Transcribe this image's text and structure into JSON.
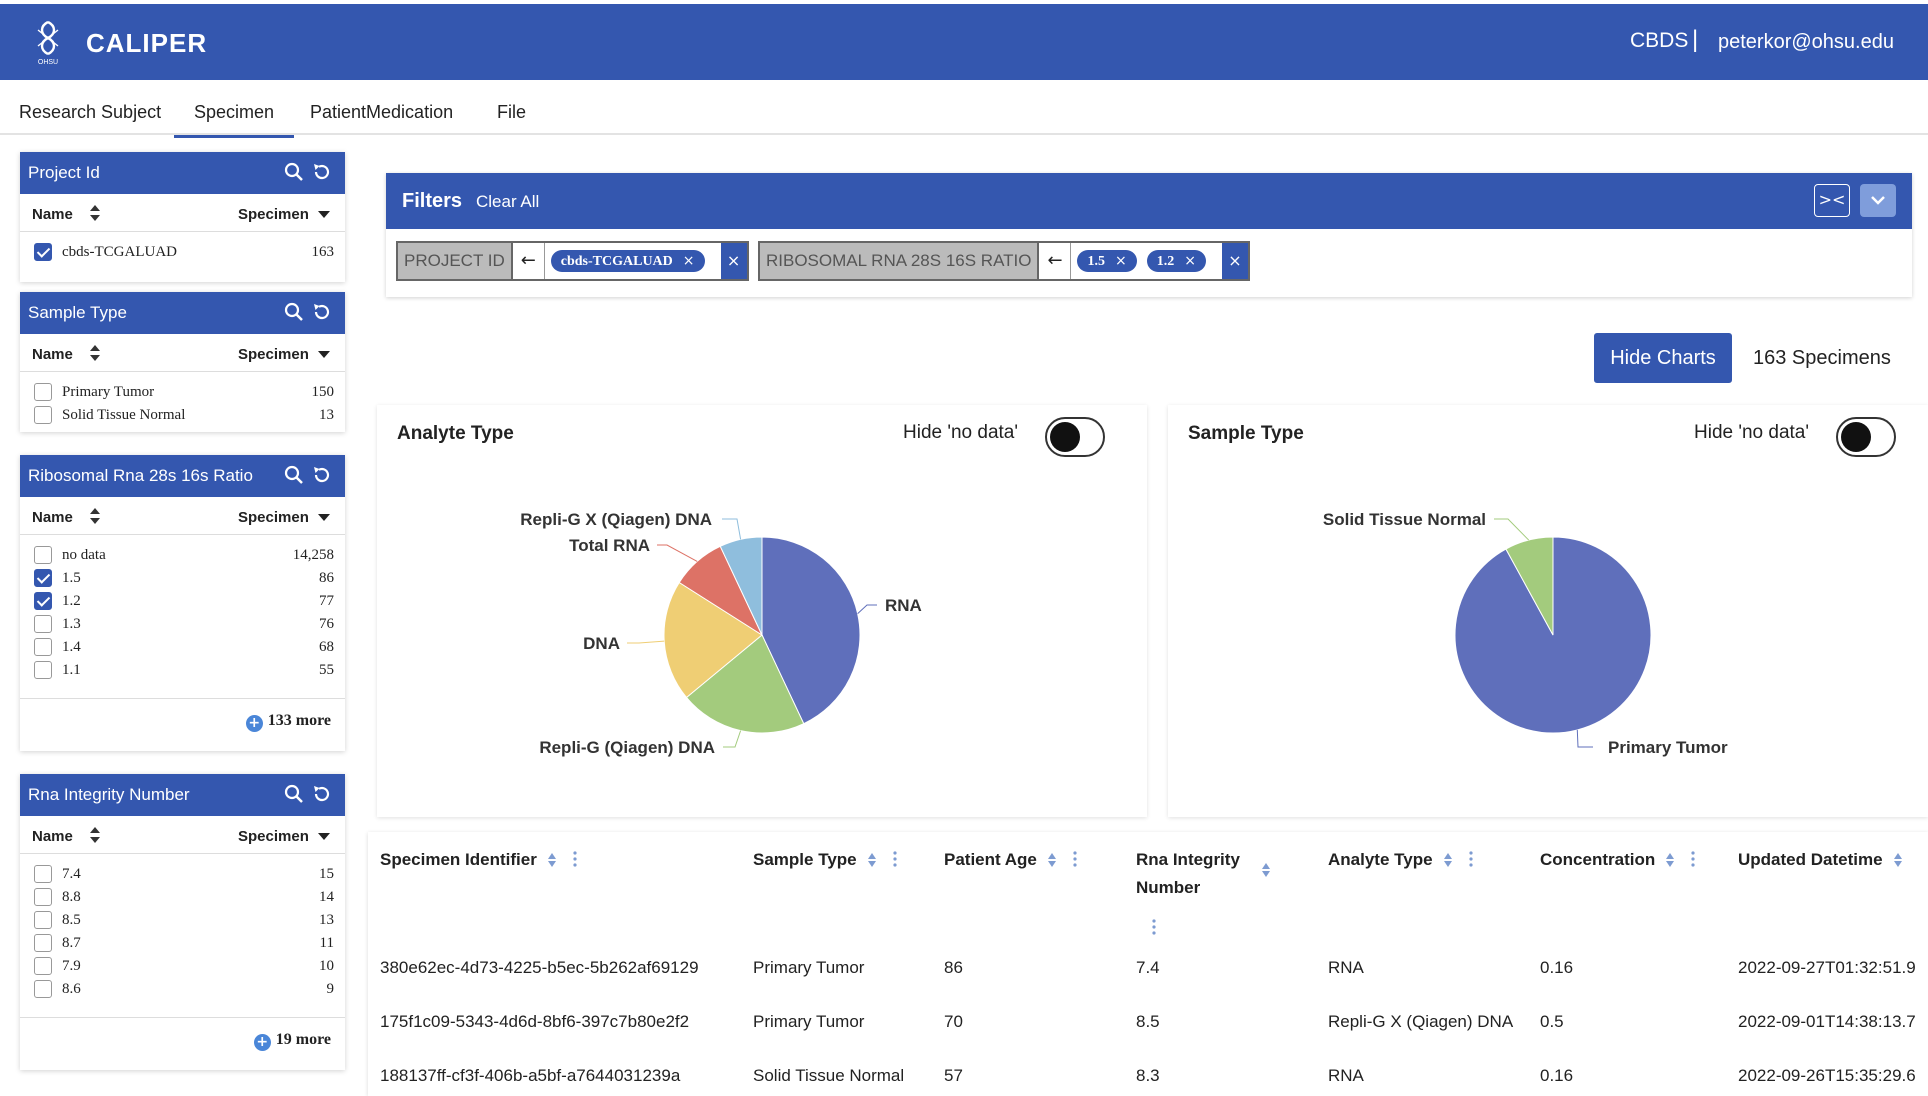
{
  "header": {
    "app_title": "CALIPER",
    "org": "CBDS",
    "separator": "|",
    "user": "peterkor@ohsu.edu",
    "logo_text": "OHSU"
  },
  "tabs": [
    "Research Subject",
    "Specimen",
    "PatientMedication",
    "File"
  ],
  "active_tab": "Specimen",
  "facet_columns": {
    "name": "Name",
    "count": "Specimen"
  },
  "facets": [
    {
      "title": "Project Id",
      "rows": [
        {
          "label": "cbds-TCGALUAD",
          "count": "163",
          "checked": true
        }
      ]
    },
    {
      "title": "Sample Type",
      "rows": [
        {
          "label": "Primary Tumor",
          "count": "150",
          "checked": false
        },
        {
          "label": "Solid Tissue Normal",
          "count": "13",
          "checked": false
        }
      ]
    },
    {
      "title": "Ribosomal Rna 28s 16s Ratio",
      "rows": [
        {
          "label": "no data",
          "count": "14,258",
          "checked": false
        },
        {
          "label": "1.5",
          "count": "86",
          "checked": true
        },
        {
          "label": "1.2",
          "count": "77",
          "checked": true
        },
        {
          "label": "1.3",
          "count": "76",
          "checked": false
        },
        {
          "label": "1.4",
          "count": "68",
          "checked": false
        },
        {
          "label": "1.1",
          "count": "55",
          "checked": false
        }
      ],
      "more": "133 more"
    },
    {
      "title": "Rna Integrity Number",
      "rows": [
        {
          "label": "7.4",
          "count": "15",
          "checked": false
        },
        {
          "label": "8.8",
          "count": "14",
          "checked": false
        },
        {
          "label": "8.5",
          "count": "13",
          "checked": false
        },
        {
          "label": "8.7",
          "count": "11",
          "checked": false
        },
        {
          "label": "7.9",
          "count": "10",
          "checked": false
        },
        {
          "label": "8.6",
          "count": "9",
          "checked": false
        }
      ],
      "more": "19 more"
    }
  ],
  "filters": {
    "title": "Filters",
    "clear_all": "Clear All",
    "groups": [
      {
        "field": "PROJECT ID",
        "values": [
          "cbds-TCGALUAD"
        ]
      },
      {
        "field": "RIBOSOMAL RNA 28S 16S RATIO",
        "values": [
          "1.5",
          "1.2"
        ]
      }
    ]
  },
  "actions": {
    "hide_charts": "Hide Charts",
    "count": "163 Specimens"
  },
  "charts": {
    "hide_label": "Hide 'no data'",
    "analyte": {
      "title": "Analyte Type"
    },
    "sample": {
      "title": "Sample Type"
    }
  },
  "chart_data": [
    {
      "type": "pie",
      "title": "Analyte Type",
      "labels": [
        "RNA",
        "Repli-G (Qiagen) DNA",
        "DNA",
        "Total RNA",
        "Repli-G X (Qiagen) DNA"
      ],
      "values": [
        43,
        21,
        20,
        9,
        7
      ],
      "colors": [
        "#5f6fbb",
        "#a3cb7d",
        "#efce74",
        "#dd7266",
        "#8fbedd"
      ]
    },
    {
      "type": "pie",
      "title": "Sample Type",
      "labels": [
        "Primary Tumor",
        "Solid Tissue Normal"
      ],
      "values": [
        150,
        13
      ],
      "colors": [
        "#5f6fbb",
        "#a3cb7d"
      ]
    }
  ],
  "table": {
    "columns": [
      "Specimen Identifier",
      "Sample Type",
      "Patient Age",
      "Rna Integrity Number",
      "Analyte Type",
      "Concentration",
      "Updated Datetime"
    ],
    "rows": [
      [
        "380e62ec-4d73-4225-b5ec-5b262af69129",
        "Primary Tumor",
        "86",
        "7.4",
        "RNA",
        "0.16",
        "2022-09-27T01:32:51.9"
      ],
      [
        "175f1c09-5343-4d6d-8bf6-397c7b80e2f2",
        "Primary Tumor",
        "70",
        "8.5",
        "Repli-G X (Qiagen) DNA",
        "0.5",
        "2022-09-01T14:38:13.7"
      ],
      [
        "188137ff-cf3f-406b-a5bf-a7644031239a",
        "Solid Tissue Normal",
        "57",
        "8.3",
        "RNA",
        "0.16",
        "2022-09-26T15:35:29.6"
      ]
    ]
  }
}
